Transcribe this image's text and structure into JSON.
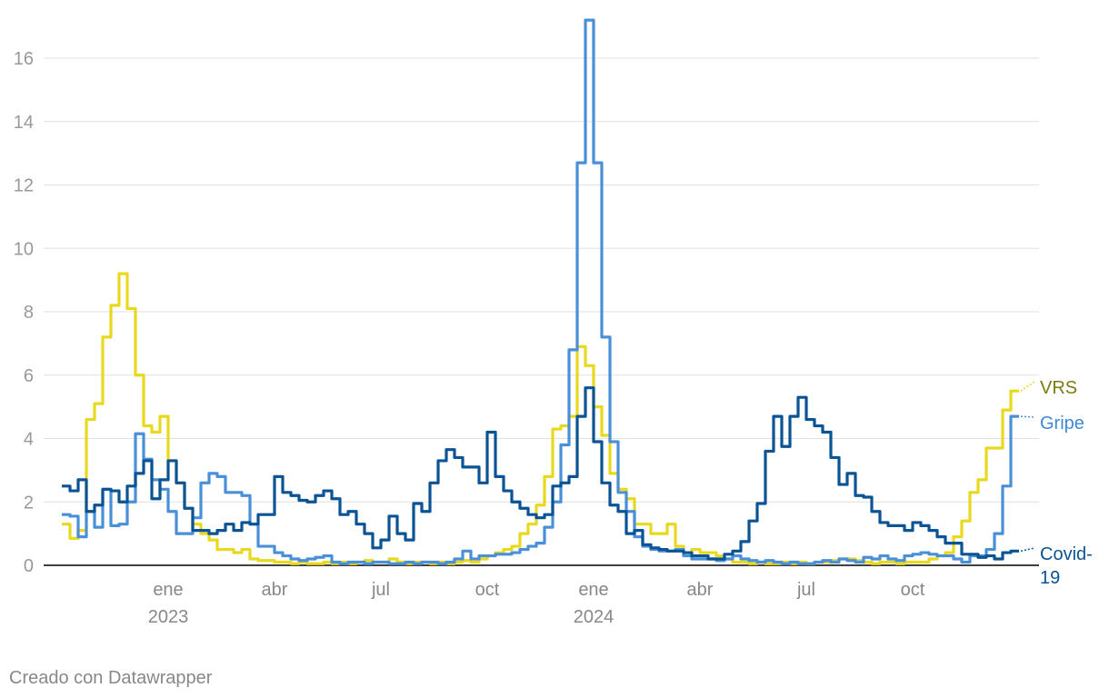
{
  "chart_data": {
    "type": "step-line",
    "footer": "Creado con Datawrapper",
    "xlim": [
      0,
      117
    ],
    "xticks": [
      {
        "value": 13,
        "label": "ene\n2023"
      },
      {
        "value": 26,
        "label": "abr"
      },
      {
        "value": 39,
        "label": "jul"
      },
      {
        "value": 52,
        "label": "oct"
      },
      {
        "value": 65,
        "label": "ene\n2024"
      },
      {
        "value": 78,
        "label": "abr"
      },
      {
        "value": 91,
        "label": "jul"
      },
      {
        "value": 104,
        "label": "oct"
      }
    ],
    "ylim": [
      0,
      17.5
    ],
    "yticks": [
      0,
      2,
      4,
      6,
      8,
      10,
      12,
      14,
      16
    ],
    "grid": true,
    "series": [
      {
        "name": "VRS",
        "color": "#e8d81e",
        "label_color": "#7d7a14",
        "values": [
          1.3,
          0.85,
          1.1,
          4.6,
          5.1,
          7.2,
          8.2,
          9.2,
          8.1,
          6.0,
          4.4,
          4.2,
          4.7,
          3.3,
          2.6,
          1.8,
          1.3,
          1.0,
          0.8,
          0.5,
          0.5,
          0.4,
          0.5,
          0.2,
          0.15,
          0.15,
          0.1,
          0.1,
          0.05,
          0.1,
          0.05,
          0.05,
          0.1,
          0.05,
          0.1,
          0.05,
          0.1,
          0.15,
          0.1,
          0.1,
          0.2,
          0.1,
          0.05,
          0.1,
          0.1,
          0.05,
          0.1,
          0.05,
          0.1,
          0.15,
          0.1,
          0.2,
          0.3,
          0.4,
          0.5,
          0.6,
          1.0,
          1.3,
          1.9,
          2.8,
          4.3,
          4.4,
          4.7,
          6.9,
          6.3,
          5.0,
          4.1,
          2.9,
          2.4,
          2.1,
          1.3,
          1.3,
          1.0,
          1.0,
          1.3,
          0.6,
          0.4,
          0.5,
          0.4,
          0.4,
          0.3,
          0.2,
          0.1,
          0.1,
          0.05,
          0.1,
          0.05,
          0.05,
          0.1,
          0.05,
          0.1,
          0.05,
          0.1,
          0.1,
          0.15,
          0.2,
          0.2,
          0.15,
          0.1,
          0.05,
          0.1,
          0.1,
          0.05,
          0.1,
          0.1,
          0.1,
          0.2,
          0.3,
          0.4,
          0.9,
          1.4,
          2.3,
          2.7,
          3.7,
          3.7,
          4.9,
          5.5
        ]
      },
      {
        "name": "Gripe",
        "color": "#4a90d9",
        "label_color": "#3f88d6",
        "values": [
          1.6,
          1.55,
          0.9,
          1.7,
          1.2,
          2.4,
          1.25,
          1.3,
          2.0,
          4.15,
          3.35,
          2.7,
          2.4,
          1.7,
          1.0,
          1.0,
          1.5,
          2.6,
          2.9,
          2.8,
          2.3,
          2.3,
          2.2,
          1.3,
          0.6,
          0.6,
          0.4,
          0.3,
          0.2,
          0.15,
          0.2,
          0.25,
          0.3,
          0.1,
          0.05,
          0.1,
          0.1,
          0.05,
          0.1,
          0.1,
          0.05,
          0.05,
          0.1,
          0.05,
          0.1,
          0.1,
          0.05,
          0.1,
          0.2,
          0.45,
          0.2,
          0.3,
          0.3,
          0.35,
          0.35,
          0.4,
          0.5,
          0.6,
          0.7,
          1.2,
          2.0,
          3.8,
          6.8,
          12.7,
          17.2,
          12.7,
          7.2,
          3.9,
          2.3,
          1.7,
          0.9,
          0.6,
          0.5,
          0.45,
          0.45,
          0.5,
          0.3,
          0.2,
          0.2,
          0.2,
          0.15,
          0.2,
          0.3,
          0.2,
          0.15,
          0.1,
          0.15,
          0.1,
          0.05,
          0.1,
          0.05,
          0.05,
          0.1,
          0.15,
          0.1,
          0.2,
          0.15,
          0.1,
          0.25,
          0.2,
          0.3,
          0.2,
          0.15,
          0.3,
          0.35,
          0.4,
          0.35,
          0.3,
          0.3,
          0.2,
          0.1,
          0.3,
          0.3,
          0.5,
          1.0,
          2.5,
          4.7
        ]
      },
      {
        "name": "Covid-\n19",
        "color": "#0a5394",
        "label_color": "#0a5394",
        "values": [
          2.5,
          2.35,
          2.7,
          1.7,
          1.9,
          2.4,
          2.35,
          2.0,
          2.5,
          2.9,
          3.3,
          2.1,
          2.7,
          3.3,
          2.6,
          1.8,
          1.1,
          1.1,
          1.0,
          1.1,
          1.3,
          1.1,
          1.35,
          1.3,
          1.6,
          1.6,
          2.8,
          2.3,
          2.2,
          2.05,
          2.0,
          2.2,
          2.35,
          2.1,
          1.6,
          1.7,
          1.3,
          1.0,
          0.55,
          0.8,
          1.55,
          1.0,
          0.8,
          1.95,
          1.7,
          2.6,
          3.3,
          3.65,
          3.4,
          3.1,
          3.1,
          2.6,
          4.2,
          2.8,
          2.35,
          2.0,
          1.8,
          1.6,
          1.5,
          1.6,
          2.5,
          2.6,
          2.8,
          4.7,
          5.6,
          3.9,
          2.6,
          1.9,
          1.7,
          1.0,
          1.1,
          0.65,
          0.55,
          0.5,
          0.45,
          0.45,
          0.4,
          0.3,
          0.3,
          0.2,
          0.2,
          0.35,
          0.45,
          0.75,
          1.4,
          1.95,
          3.6,
          4.7,
          3.75,
          4.7,
          5.3,
          4.6,
          4.4,
          4.2,
          3.4,
          2.55,
          2.9,
          2.2,
          2.15,
          1.7,
          1.35,
          1.25,
          1.25,
          1.1,
          1.35,
          1.25,
          1.1,
          0.9,
          0.7,
          0.7,
          0.35,
          0.35,
          0.25,
          0.3,
          0.2,
          0.4,
          0.45
        ]
      }
    ]
  }
}
